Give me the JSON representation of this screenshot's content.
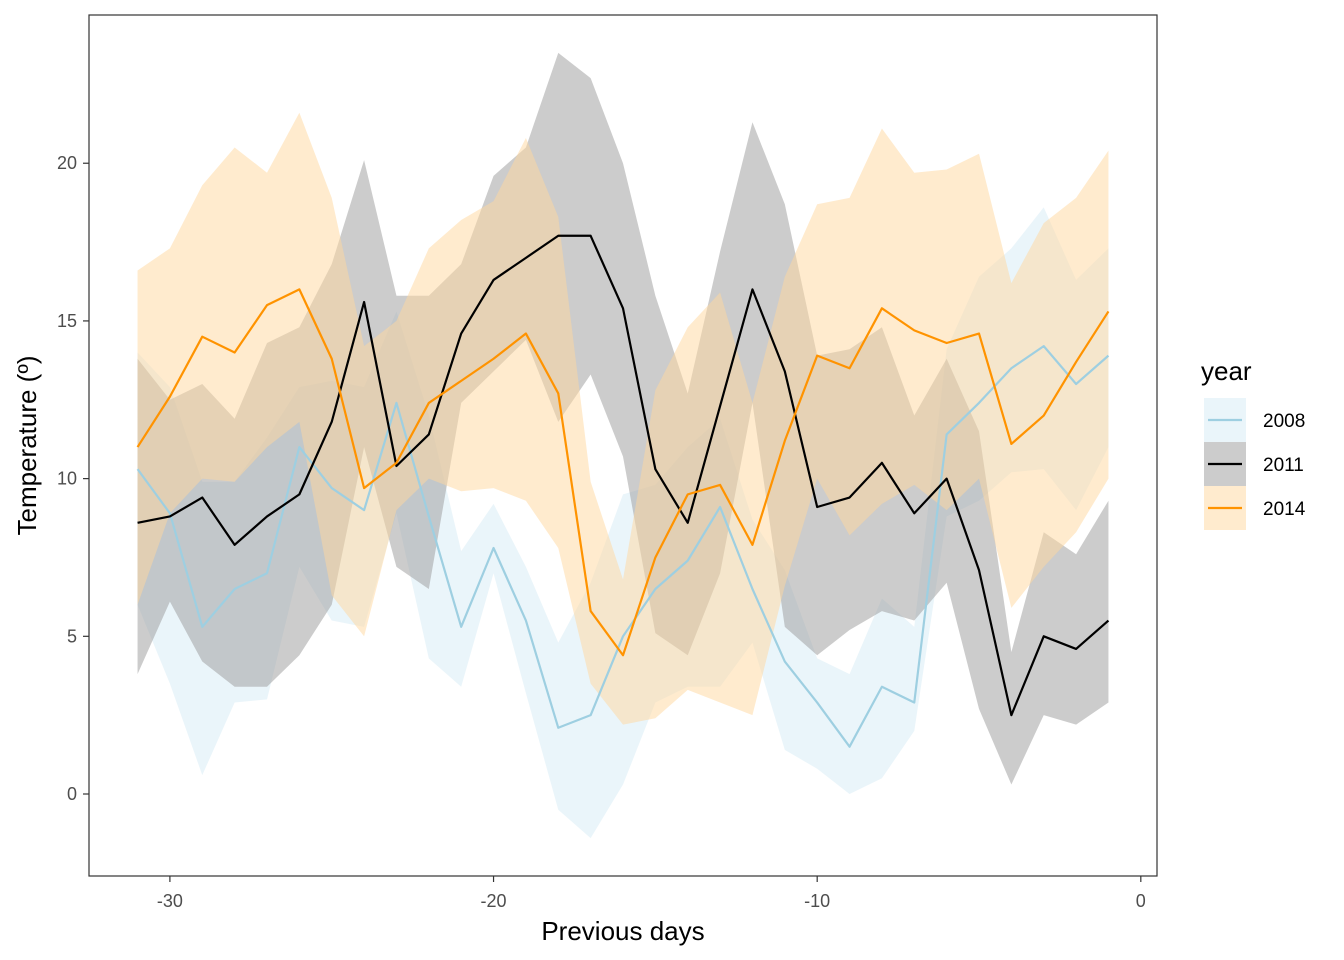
{
  "chart_data": {
    "type": "line",
    "xlabel": "Previous days",
    "ylabel": "Temperature (º)",
    "xlim": [
      -32.5,
      0.5
    ],
    "ylim": [
      -2.6,
      24.7
    ],
    "x_ticks": [
      -30,
      -20,
      -10,
      0
    ],
    "x_tick_labels": [
      "-30",
      "-20",
      "-10",
      "0"
    ],
    "y_ticks": [
      0,
      5,
      10,
      15,
      20
    ],
    "y_tick_labels": [
      "0",
      "5",
      "10",
      "15",
      "20"
    ],
    "grid": false,
    "legend": {
      "title": "year",
      "placement": "right"
    },
    "x": [
      -31,
      -30,
      -29,
      -28,
      -27,
      -26,
      -25,
      -24,
      -23,
      -22,
      -21,
      -20,
      -19,
      -18,
      -17,
      -16,
      -15,
      -14,
      -13,
      -12,
      -11,
      -10,
      -9,
      -8,
      -7,
      -6,
      -5,
      -4,
      -3,
      -2,
      -1
    ],
    "series": [
      {
        "name": "2008",
        "color": "#9ecfe1",
        "fill": "#d6ebf5",
        "fill_opacity": 0.5,
        "values": [
          10.3,
          8.9,
          5.3,
          6.5,
          7.0,
          11.0,
          9.7,
          9.0,
          12.4,
          8.8,
          5.3,
          7.8,
          5.5,
          2.1,
          2.5,
          5.0,
          6.5,
          7.4,
          9.1,
          6.5,
          4.2,
          2.9,
          1.5,
          3.4,
          2.9,
          11.4,
          12.4,
          13.5,
          14.2,
          13.0,
          13.9
        ],
        "lower": [
          6.0,
          3.5,
          0.6,
          2.9,
          3.0,
          7.2,
          5.5,
          5.3,
          8.9,
          4.3,
          3.4,
          7.0,
          3.2,
          -0.5,
          -1.4,
          0.3,
          2.9,
          3.4,
          3.4,
          4.8,
          1.4,
          0.8,
          0.0,
          0.5,
          2.0,
          8.8,
          9.3,
          10.2,
          10.3,
          9.0,
          11.0
        ],
        "upper": [
          14.0,
          12.9,
          9.9,
          9.9,
          11.3,
          12.9,
          13.1,
          12.9,
          15.3,
          12.0,
          7.7,
          9.2,
          7.2,
          4.8,
          6.7,
          9.5,
          9.8,
          11.0,
          11.9,
          8.7,
          7.1,
          4.3,
          3.8,
          6.2,
          5.3,
          14.1,
          16.4,
          17.3,
          18.6,
          16.3,
          17.3
        ]
      },
      {
        "name": "2011",
        "color": "#000000",
        "fill": "#999999",
        "fill_opacity": 0.5,
        "values": [
          8.6,
          8.8,
          9.4,
          7.9,
          8.8,
          9.5,
          11.8,
          15.6,
          10.4,
          11.4,
          14.6,
          16.3,
          17.0,
          17.7,
          17.7,
          15.4,
          10.3,
          8.6,
          12.3,
          16.0,
          13.4,
          9.1,
          9.4,
          10.5,
          8.9,
          10.0,
          7.1,
          2.5,
          5.0,
          4.6,
          5.5
        ],
        "lower": [
          3.8,
          6.1,
          4.2,
          3.4,
          3.4,
          4.4,
          6.0,
          11.0,
          7.2,
          6.5,
          12.4,
          13.4,
          14.4,
          11.8,
          13.3,
          10.7,
          5.1,
          4.4,
          7.0,
          12.4,
          5.3,
          4.4,
          5.2,
          5.8,
          5.5,
          6.7,
          2.7,
          0.3,
          2.5,
          2.2,
          2.9
        ],
        "upper": [
          13.8,
          12.5,
          13.0,
          11.9,
          14.3,
          14.8,
          16.8,
          20.1,
          15.8,
          15.8,
          16.8,
          19.6,
          20.5,
          23.5,
          22.7,
          20.0,
          15.8,
          12.7,
          17.2,
          21.3,
          18.7,
          13.9,
          14.1,
          14.8,
          12.0,
          13.8,
          11.5,
          4.5,
          8.3,
          7.6,
          9.3
        ]
      },
      {
        "name": "2014",
        "color": "#ff9300",
        "fill": "#ffd79e",
        "fill_opacity": 0.5,
        "values": [
          11.0,
          12.6,
          14.5,
          14.0,
          15.5,
          16.0,
          13.8,
          9.7,
          10.5,
          12.4,
          13.1,
          13.8,
          14.6,
          12.7,
          5.8,
          4.4,
          7.5,
          9.5,
          9.8,
          7.9,
          11.2,
          13.9,
          13.5,
          15.4,
          14.7,
          14.3,
          14.6,
          11.1,
          12.0,
          13.7,
          15.3
        ],
        "lower": [
          6.0,
          8.9,
          10.0,
          9.9,
          11.0,
          11.8,
          6.3,
          5.0,
          9.0,
          10.0,
          9.6,
          9.7,
          9.3,
          7.8,
          3.5,
          2.2,
          2.4,
          3.3,
          2.9,
          2.5,
          6.6,
          10.0,
          8.2,
          9.2,
          9.8,
          9.0,
          10.0,
          5.9,
          7.2,
          8.3,
          10.0
        ],
        "upper": [
          16.6,
          17.3,
          19.3,
          20.5,
          19.7,
          21.6,
          18.9,
          14.2,
          15.0,
          17.3,
          18.2,
          18.8,
          20.8,
          18.3,
          9.9,
          6.8,
          12.8,
          14.8,
          15.9,
          12.4,
          16.4,
          18.7,
          18.9,
          21.1,
          19.7,
          19.8,
          20.3,
          16.2,
          18.1,
          18.9,
          20.4
        ]
      }
    ]
  }
}
